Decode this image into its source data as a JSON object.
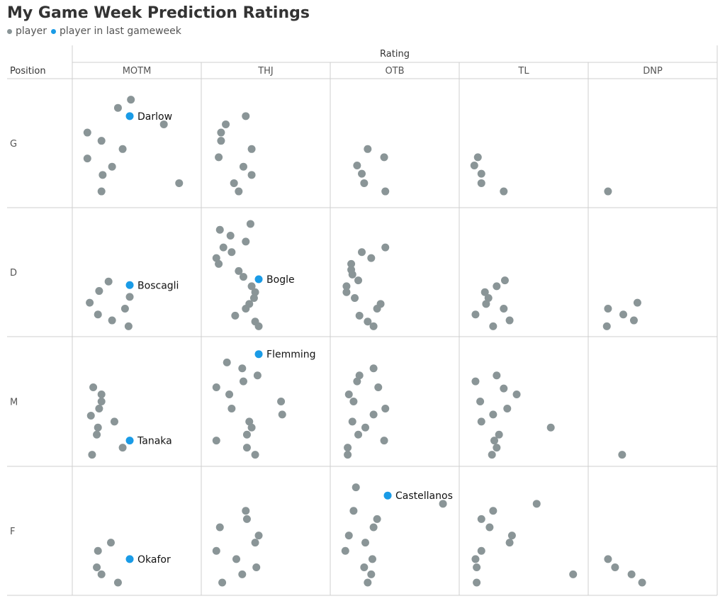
{
  "title": "My Game Week Prediction Ratings",
  "legend": [
    {
      "label": "player",
      "color": "#8a9597"
    },
    {
      "label": "player in last gameweek",
      "color": "#1a9be6"
    }
  ],
  "colors": {
    "player": "#8a9597",
    "highlight": "#1a9be6",
    "grid": "#cfcfcf"
  },
  "chart_data": {
    "type": "scatter",
    "column_axis_title": "Rating",
    "row_axis_title": "Position",
    "columns": [
      "MOTM",
      "THJ",
      "OTB",
      "TL",
      "DNP"
    ],
    "rows": [
      "G",
      "D",
      "M",
      "F"
    ],
    "note": "jittered points; each point = one player",
    "panels": {
      "G": {
        "MOTM": [
          [
            0.45,
            0.13
          ],
          [
            0.34,
            0.2
          ],
          [
            0.73,
            0.34
          ],
          [
            0.08,
            0.41
          ],
          [
            0.2,
            0.48
          ],
          [
            0.38,
            0.55
          ],
          [
            0.08,
            0.63
          ],
          [
            0.29,
            0.7
          ],
          [
            0.21,
            0.77
          ],
          [
            0.86,
            0.84
          ],
          [
            0.2,
            0.91
          ]
        ],
        "THJ": [
          [
            0.33,
            0.27
          ],
          [
            0.16,
            0.34
          ],
          [
            0.12,
            0.41
          ],
          [
            0.12,
            0.48
          ],
          [
            0.38,
            0.55
          ],
          [
            0.1,
            0.62
          ],
          [
            0.31,
            0.7
          ],
          [
            0.38,
            0.77
          ],
          [
            0.23,
            0.84
          ],
          [
            0.27,
            0.91
          ]
        ],
        "OTB": [
          [
            0.27,
            0.55
          ],
          [
            0.41,
            0.62
          ],
          [
            0.18,
            0.69
          ],
          [
            0.22,
            0.76
          ],
          [
            0.24,
            0.84
          ],
          [
            0.42,
            0.91
          ]
        ],
        "TL": [
          [
            0.11,
            0.62
          ],
          [
            0.08,
            0.69
          ],
          [
            0.14,
            0.76
          ],
          [
            0.14,
            0.84
          ],
          [
            0.33,
            0.91
          ]
        ],
        "DNP": [
          [
            0.12,
            0.91
          ]
        ]
      },
      "D": {
        "MOTM": [
          [
            0.26,
            0.58
          ],
          [
            0.18,
            0.66
          ],
          [
            0.44,
            0.71
          ],
          [
            0.1,
            0.76
          ],
          [
            0.4,
            0.81
          ],
          [
            0.17,
            0.86
          ],
          [
            0.29,
            0.91
          ],
          [
            0.43,
            0.96
          ]
        ],
        "THJ": [
          [
            0.37,
            0.09
          ],
          [
            0.11,
            0.14
          ],
          [
            0.2,
            0.19
          ],
          [
            0.33,
            0.24
          ],
          [
            0.14,
            0.29
          ],
          [
            0.21,
            0.33
          ],
          [
            0.08,
            0.38
          ],
          [
            0.1,
            0.43
          ],
          [
            0.27,
            0.49
          ],
          [
            0.31,
            0.54
          ],
          [
            0.38,
            0.62
          ],
          [
            0.41,
            0.67
          ],
          [
            0.4,
            0.72
          ],
          [
            0.36,
            0.77
          ],
          [
            0.33,
            0.81
          ],
          [
            0.24,
            0.87
          ],
          [
            0.41,
            0.92
          ],
          [
            0.44,
            0.96
          ]
        ],
        "OTB": [
          [
            0.42,
            0.29
          ],
          [
            0.22,
            0.33
          ],
          [
            0.3,
            0.38
          ],
          [
            0.13,
            0.43
          ],
          [
            0.13,
            0.48
          ],
          [
            0.14,
            0.52
          ],
          [
            0.19,
            0.57
          ],
          [
            0.09,
            0.62
          ],
          [
            0.09,
            0.67
          ],
          [
            0.16,
            0.72
          ],
          [
            0.38,
            0.77
          ],
          [
            0.35,
            0.81
          ],
          [
            0.2,
            0.87
          ],
          [
            0.27,
            0.92
          ],
          [
            0.32,
            0.96
          ]
        ],
        "TL": [
          [
            0.34,
            0.57
          ],
          [
            0.27,
            0.62
          ],
          [
            0.17,
            0.67
          ],
          [
            0.2,
            0.72
          ],
          [
            0.18,
            0.77
          ],
          [
            0.33,
            0.81
          ],
          [
            0.09,
            0.86
          ],
          [
            0.38,
            0.91
          ],
          [
            0.24,
            0.96
          ]
        ],
        "DNP": [
          [
            0.37,
            0.76
          ],
          [
            0.12,
            0.81
          ],
          [
            0.25,
            0.86
          ],
          [
            0.34,
            0.91
          ],
          [
            0.11,
            0.96
          ]
        ]
      },
      "F": {
        "MOTM": [
          [
            0.28,
            0.6
          ],
          [
            0.17,
            0.67
          ],
          [
            0.16,
            0.81
          ],
          [
            0.2,
            0.87
          ],
          [
            0.34,
            0.94
          ]
        ],
        "THJ": [
          [
            0.33,
            0.33
          ],
          [
            0.34,
            0.4
          ],
          [
            0.11,
            0.47
          ],
          [
            0.44,
            0.54
          ],
          [
            0.41,
            0.6
          ],
          [
            0.08,
            0.67
          ],
          [
            0.25,
            0.74
          ],
          [
            0.42,
            0.81
          ],
          [
            0.3,
            0.87
          ],
          [
            0.13,
            0.94
          ]
        ],
        "OTB": [
          [
            0.17,
            0.13
          ],
          [
            0.91,
            0.27
          ],
          [
            0.15,
            0.33
          ],
          [
            0.32,
            0.47
          ],
          [
            0.35,
            0.4
          ],
          [
            0.11,
            0.54
          ],
          [
            0.25,
            0.6
          ],
          [
            0.08,
            0.67
          ],
          [
            0.31,
            0.74
          ],
          [
            0.24,
            0.81
          ],
          [
            0.3,
            0.87
          ],
          [
            0.27,
            0.94
          ]
        ],
        "TL": [
          [
            0.61,
            0.27
          ],
          [
            0.24,
            0.33
          ],
          [
            0.14,
            0.4
          ],
          [
            0.21,
            0.47
          ],
          [
            0.4,
            0.54
          ],
          [
            0.38,
            0.6
          ],
          [
            0.14,
            0.67
          ],
          [
            0.09,
            0.74
          ],
          [
            0.1,
            0.81
          ],
          [
            0.92,
            0.87
          ],
          [
            0.1,
            0.94
          ]
        ],
        "DNP": [
          [
            0.12,
            0.74
          ],
          [
            0.18,
            0.81
          ],
          [
            0.32,
            0.87
          ],
          [
            0.41,
            0.94
          ]
        ]
      },
      "M": {
        "MOTM": [
          [
            0.13,
            0.38
          ],
          [
            0.2,
            0.44
          ],
          [
            0.2,
            0.5
          ],
          [
            0.18,
            0.56
          ],
          [
            0.11,
            0.62
          ],
          [
            0.31,
            0.67
          ],
          [
            0.17,
            0.72
          ],
          [
            0.16,
            0.78
          ],
          [
            0.38,
            0.89
          ],
          [
            0.12,
            0.95
          ]
        ],
        "THJ": [
          [
            0.17,
            0.17
          ],
          [
            0.3,
            0.22
          ],
          [
            0.43,
            0.28
          ],
          [
            0.31,
            0.33
          ],
          [
            0.08,
            0.38
          ],
          [
            0.19,
            0.44
          ],
          [
            0.63,
            0.5
          ],
          [
            0.21,
            0.56
          ],
          [
            0.64,
            0.61
          ],
          [
            0.36,
            0.67
          ],
          [
            0.38,
            0.72
          ],
          [
            0.34,
            0.78
          ],
          [
            0.08,
            0.83
          ],
          [
            0.34,
            0.89
          ],
          [
            0.41,
            0.95
          ]
        ],
        "OTB": [
          [
            0.32,
            0.22
          ],
          [
            0.2,
            0.28
          ],
          [
            0.18,
            0.33
          ],
          [
            0.36,
            0.38
          ],
          [
            0.11,
            0.44
          ],
          [
            0.15,
            0.5
          ],
          [
            0.42,
            0.56
          ],
          [
            0.32,
            0.61
          ],
          [
            0.14,
            0.67
          ],
          [
            0.25,
            0.72
          ],
          [
            0.19,
            0.78
          ],
          [
            0.41,
            0.83
          ],
          [
            0.1,
            0.89
          ],
          [
            0.1,
            0.95
          ]
        ],
        "TL": [
          [
            0.27,
            0.28
          ],
          [
            0.09,
            0.33
          ],
          [
            0.33,
            0.39
          ],
          [
            0.44,
            0.44
          ],
          [
            0.13,
            0.5
          ],
          [
            0.36,
            0.56
          ],
          [
            0.24,
            0.61
          ],
          [
            0.14,
            0.67
          ],
          [
            0.73,
            0.72
          ],
          [
            0.29,
            0.78
          ],
          [
            0.25,
            0.83
          ],
          [
            0.27,
            0.89
          ],
          [
            0.23,
            0.95
          ]
        ],
        "DNP": [
          [
            0.24,
            0.95
          ]
        ]
      }
    },
    "highlights": [
      {
        "name": "Darlow",
        "row": "G",
        "col": "MOTM",
        "x": 0.44,
        "y": 0.27
      },
      {
        "name": "Boscagli",
        "row": "D",
        "col": "MOTM",
        "x": 0.44,
        "y": 0.61
      },
      {
        "name": "Bogle",
        "row": "D",
        "col": "THJ",
        "x": 0.44,
        "y": 0.56
      },
      {
        "name": "Flemming",
        "row": "M",
        "col": "THJ",
        "x": 0.44,
        "y": 0.1
      },
      {
        "name": "Tanaka",
        "row": "M",
        "col": "MOTM",
        "x": 0.44,
        "y": 0.83
      },
      {
        "name": "Castellanos",
        "row": "F",
        "col": "OTB",
        "x": 0.44,
        "y": 0.2
      },
      {
        "name": "Okafor",
        "row": "F",
        "col": "MOTM",
        "x": 0.44,
        "y": 0.74
      }
    ]
  }
}
